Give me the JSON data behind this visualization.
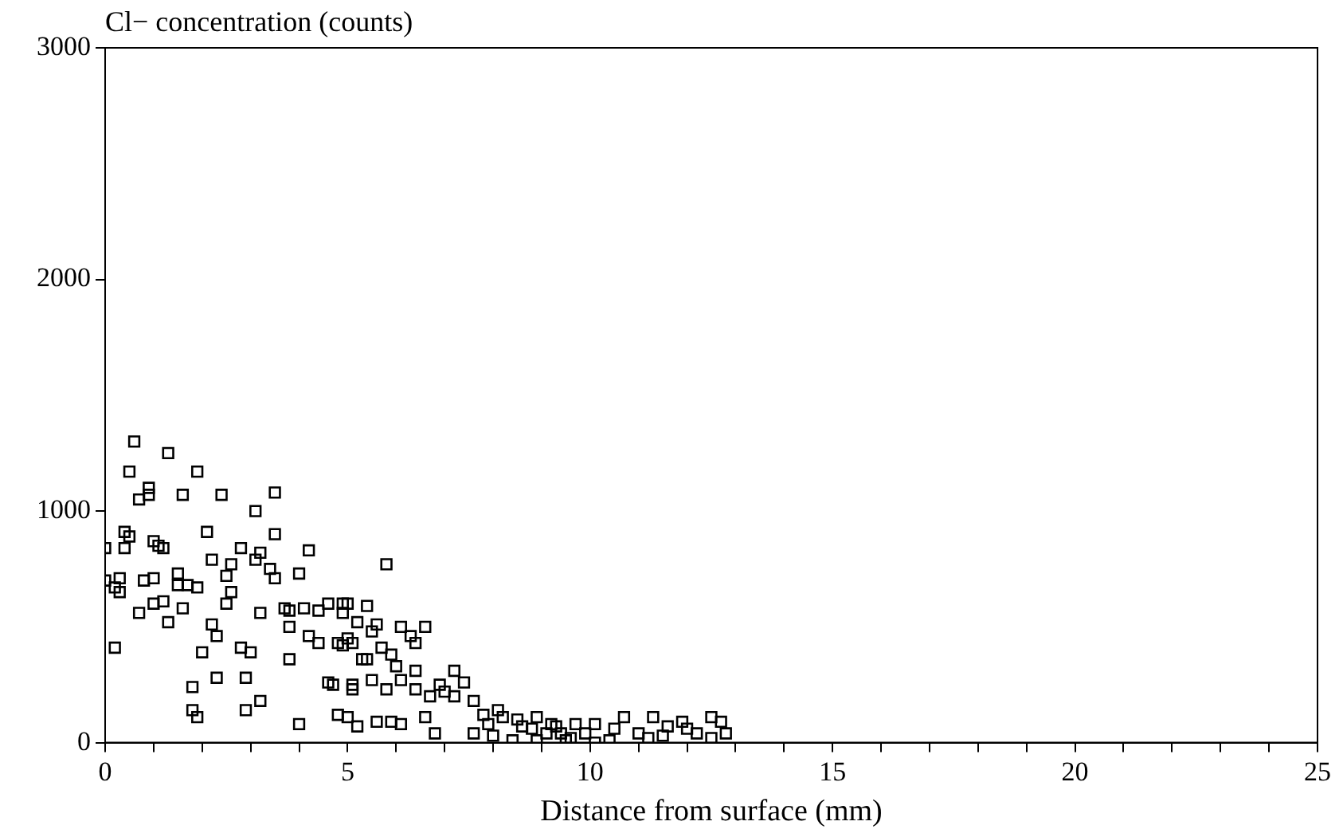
{
  "chart_data": {
    "type": "scatter",
    "ylabel": "Cl− concentration (counts)",
    "xlabel": "Distance from surface (mm)",
    "xlim": [
      0,
      25
    ],
    "xticks": [
      0,
      {
        "value": 1,
        "label": null
      },
      {
        "value": 2,
        "label": null
      },
      {
        "value": 3,
        "label": null
      },
      {
        "value": 4,
        "label": null
      },
      5,
      {
        "value": 6,
        "label": null
      },
      {
        "value": 7,
        "label": null
      },
      {
        "value": 8,
        "label": null
      },
      {
        "value": 9,
        "label": null
      },
      10,
      {
        "value": 11,
        "label": null
      },
      {
        "value": 12,
        "label": null
      },
      {
        "value": 13,
        "label": null
      },
      {
        "value": 14,
        "label": null
      },
      15,
      {
        "value": 16,
        "label": null
      },
      {
        "value": 17,
        "label": null
      },
      {
        "value": 18,
        "label": null
      },
      {
        "value": 19,
        "label": null
      },
      20,
      {
        "value": 21,
        "label": null
      },
      {
        "value": 22,
        "label": null
      },
      {
        "value": 23,
        "label": null
      },
      {
        "value": 24,
        "label": null
      },
      25
    ],
    "ylim": [
      0,
      3000
    ],
    "yticks": [
      0,
      1000,
      2000,
      3000
    ],
    "grid": false,
    "marker": "square",
    "series": [
      {
        "color": "#000000",
        "x": [
          0.6,
          1.3,
          0.5,
          1.9,
          0.9,
          0.7,
          0.9,
          1.6,
          2.4,
          3.5,
          3.1,
          0.4,
          0.5,
          0.4,
          0.0,
          1.0,
          1.2,
          1.1,
          2.1,
          3.5,
          2.8,
          2.6,
          2.5,
          2.2,
          3.2,
          3.4,
          3.1,
          3.5,
          4.0,
          4.2,
          0.0,
          0.3,
          0.3,
          0.2,
          0.8,
          1.0,
          1.5,
          1.5,
          1.7,
          1.9,
          1.2,
          1.0,
          0.7,
          1.6,
          1.3,
          2.6,
          2.5,
          3.2,
          3.7,
          3.8,
          4.1,
          4.4,
          4.6,
          5.0,
          3.8,
          4.2,
          4.4,
          4.8,
          5.0,
          2.2,
          2.3,
          2.8,
          3.0,
          0.2,
          2.0,
          3.8,
          2.3,
          2.9,
          1.8,
          4.6,
          5.1,
          3.2,
          2.9,
          1.8,
          1.9,
          4.0,
          4.8,
          5.0,
          5.8,
          4.9,
          4.9,
          5.4,
          5.2,
          5.5,
          5.6,
          6.1,
          6.3,
          6.4,
          6.6,
          5.1,
          4.9,
          5.4,
          5.7,
          5.9,
          6.0,
          5.3,
          6.4,
          7.2,
          7.4,
          6.9,
          5.5,
          5.8,
          5.1,
          6.1,
          6.4,
          6.7,
          7.0,
          7.2,
          7.6,
          4.7,
          5.2,
          5.6,
          5.9,
          6.1,
          6.6,
          6.8,
          7.6,
          7.9,
          8.1,
          8.2,
          8.4,
          8.9,
          9.2,
          9.7,
          9.4,
          9.9,
          8.6,
          8.8,
          9.1,
          9.3,
          10.1,
          10.4,
          10.7,
          11.0,
          11.3,
          11.2,
          11.6,
          11.9,
          12.2,
          12.5,
          12.7,
          12.8,
          12.5,
          10.1,
          9.5,
          8.9,
          9.6,
          10.5,
          11.5,
          12.0,
          8.0,
          7.8,
          8.5
        ],
        "values": [
          1300,
          1250,
          1170,
          1170,
          1100,
          1050,
          1070,
          1070,
          1070,
          1080,
          1000,
          910,
          890,
          840,
          840,
          870,
          840,
          850,
          910,
          900,
          840,
          770,
          720,
          790,
          820,
          750,
          790,
          710,
          730,
          830,
          700,
          710,
          650,
          670,
          700,
          710,
          730,
          680,
          680,
          670,
          610,
          600,
          560,
          580,
          520,
          650,
          600,
          560,
          580,
          570,
          580,
          570,
          600,
          600,
          500,
          460,
          430,
          430,
          450,
          510,
          460,
          410,
          390,
          410,
          390,
          360,
          280,
          280,
          240,
          260,
          250,
          180,
          140,
          140,
          110,
          80,
          120,
          110,
          770,
          600,
          560,
          590,
          520,
          480,
          510,
          500,
          460,
          430,
          500,
          430,
          420,
          360,
          410,
          380,
          330,
          360,
          310,
          310,
          260,
          250,
          270,
          230,
          230,
          270,
          230,
          200,
          220,
          200,
          180,
          250,
          70,
          90,
          90,
          80,
          110,
          40,
          40,
          80,
          140,
          110,
          10,
          110,
          80,
          80,
          40,
          40,
          70,
          60,
          40,
          70,
          80,
          10,
          110,
          40,
          110,
          20,
          70,
          90,
          40,
          110,
          90,
          40,
          20,
          0,
          10,
          10,
          20,
          60,
          30,
          60,
          30,
          120,
          100
        ]
      }
    ]
  }
}
